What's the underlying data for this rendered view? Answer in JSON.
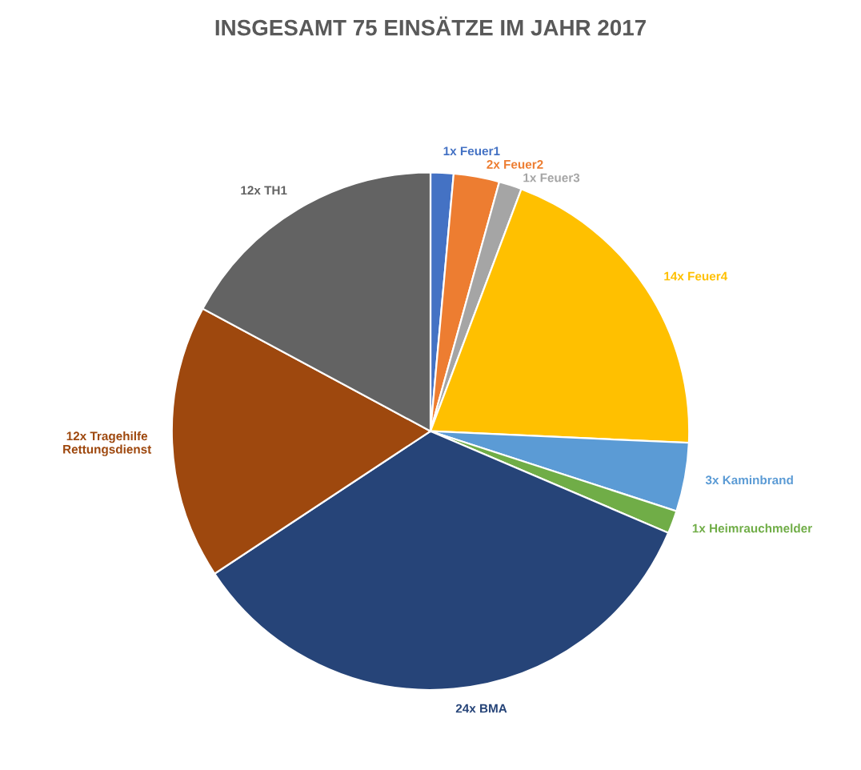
{
  "chart_data": {
    "type": "pie",
    "title": "INSGESAMT 75 EINSÄTZE IM JAHR 2017",
    "categories": [
      "1x Feuer1",
      "2x Feuer2",
      "1x Feuer3",
      "14x Feuer4",
      "3x Kaminbrand",
      "1x Heimrauchmelder",
      "24x BMA",
      "12x Tragehilfe\nRettungsdienst",
      "12x TH1"
    ],
    "values": [
      1,
      2,
      1,
      14,
      3,
      1,
      24,
      12,
      12
    ],
    "colors": [
      "#4472c4",
      "#ed7d31",
      "#a5a5a5",
      "#ffc000",
      "#5b9bd5",
      "#70ad47",
      "#264478",
      "#9e480e",
      "#636363"
    ],
    "legend": false
  }
}
